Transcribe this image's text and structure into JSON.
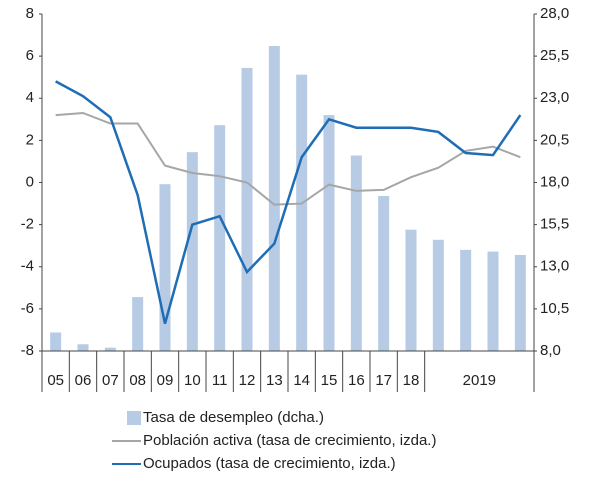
{
  "chart_data": {
    "type": "bar-line",
    "categories": [
      "05",
      "06",
      "07",
      "08",
      "09",
      "10",
      "11",
      "12",
      "13",
      "14",
      "15",
      "16",
      "17",
      "18",
      null,
      null,
      null,
      null
    ],
    "x_group": {
      "label": "2019",
      "first": 14,
      "count": 4
    },
    "series": [
      {
        "name": "Tasa de desempleo (dcha.)",
        "type": "bar",
        "axis": "y2",
        "color": "#b7cbe5",
        "values": [
          9.1,
          8.4,
          8.2,
          11.2,
          17.9,
          19.8,
          21.4,
          24.8,
          26.1,
          24.4,
          22.0,
          19.6,
          17.2,
          15.2,
          14.6,
          14.0,
          13.9,
          13.7
        ]
      },
      {
        "name": "Población activa (tasa de crecimiento, izda.)",
        "type": "line",
        "color": "#a6a6a6",
        "values": [
          3.2,
          3.3,
          2.8,
          2.8,
          0.8,
          0.45,
          0.3,
          0.0,
          -1.05,
          -1.0,
          -0.1,
          -0.4,
          -0.35,
          0.25,
          0.7,
          1.5,
          1.7,
          1.2
        ]
      },
      {
        "name": "Ocupados (tasa de  crecimiento, izda.)",
        "type": "line",
        "color": "#1f6db5",
        "values": [
          4.8,
          4.1,
          3.1,
          -0.6,
          -6.7,
          -2.0,
          -1.6,
          -4.25,
          -2.9,
          1.2,
          3.0,
          2.6,
          2.6,
          2.6,
          2.4,
          1.4,
          1.3,
          3.2
        ]
      }
    ],
    "ylim": [
      -8,
      8
    ],
    "yticks": [
      -8,
      -6,
      -4,
      -2,
      0,
      2,
      4,
      6,
      8
    ],
    "y2lim": [
      8,
      28
    ],
    "y2ticks": [
      {
        "value": 8,
        "label": "8,0"
      },
      {
        "value": 10.5,
        "label": "10,5"
      },
      {
        "value": 13,
        "label": "13,0"
      },
      {
        "value": 15.5,
        "label": "15,5"
      },
      {
        "value": 18,
        "label": "18,0"
      },
      {
        "value": 20.5,
        "label": "20,5"
      },
      {
        "value": 23,
        "label": "23,0"
      },
      {
        "value": 25.5,
        "label": "25,5"
      },
      {
        "value": 28,
        "label": "28,0"
      }
    ]
  }
}
